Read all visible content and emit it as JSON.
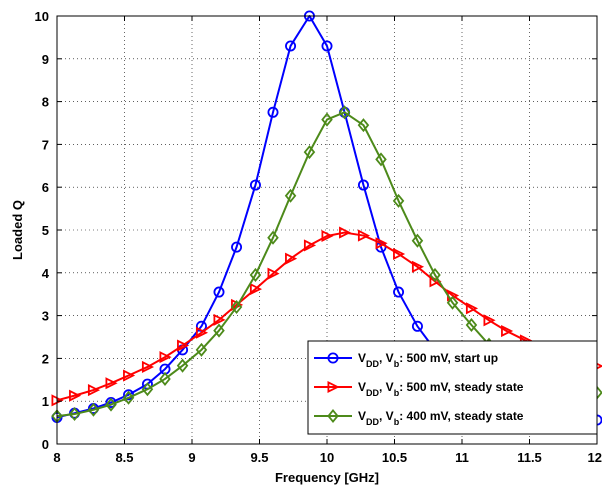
{
  "chart_data": {
    "type": "line",
    "xlabel": "Frequency [GHz]",
    "ylabel": "Loaded Q",
    "xlim": [
      8,
      12
    ],
    "ylim": [
      0,
      10
    ],
    "xticks": [
      8,
      8.5,
      9,
      9.5,
      10,
      10.5,
      11,
      11.5,
      12
    ],
    "xtick_labels": [
      "8",
      "8.5",
      "9",
      "9.5",
      "10",
      "10.5",
      "11",
      "11.5",
      "12"
    ],
    "yticks": [
      0,
      1,
      2,
      3,
      4,
      5,
      6,
      7,
      8,
      9,
      10
    ],
    "ytick_labels": [
      "0",
      "1",
      "2",
      "3",
      "4",
      "5",
      "6",
      "7",
      "8",
      "9",
      "10"
    ],
    "grid": true,
    "legend_position": "bottom-right",
    "series": [
      {
        "name_parts": [
          {
            "t": "V",
            "sub": false
          },
          {
            "t": "DD",
            "sub": true
          },
          {
            "t": ", V",
            "sub": false
          },
          {
            "t": "b",
            "sub": true
          },
          {
            "t": ": 500 mV, start up",
            "sub": false
          }
        ],
        "color": "#0000ff",
        "marker": "circle",
        "x": [
          8.0,
          8.13,
          8.27,
          8.4,
          8.53,
          8.67,
          8.8,
          8.93,
          9.07,
          9.2,
          9.33,
          9.47,
          9.6,
          9.73,
          9.87,
          10.0,
          10.13,
          10.27,
          10.4,
          10.53,
          10.67,
          10.8,
          10.93,
          11.07,
          11.2,
          11.33,
          11.47,
          11.6,
          11.73,
          11.87,
          12.0
        ],
        "y": [
          0.62,
          0.72,
          0.83,
          0.97,
          1.15,
          1.4,
          1.75,
          2.2,
          2.75,
          3.55,
          4.6,
          6.05,
          7.75,
          9.3,
          10.0,
          9.3,
          7.75,
          6.05,
          4.6,
          3.55,
          2.75,
          2.2,
          1.8,
          1.48,
          1.22,
          1.03,
          0.9,
          0.8,
          0.72,
          0.64,
          0.56
        ]
      },
      {
        "name_parts": [
          {
            "t": "V",
            "sub": false
          },
          {
            "t": "DD",
            "sub": true
          },
          {
            "t": ", V",
            "sub": false
          },
          {
            "t": "b",
            "sub": true
          },
          {
            "t": ": 500 mV, steady state",
            "sub": false
          }
        ],
        "color": "#ff0000",
        "marker": "triangle-right",
        "x": [
          8.0,
          8.13,
          8.27,
          8.4,
          8.53,
          8.67,
          8.8,
          8.93,
          9.07,
          9.2,
          9.33,
          9.47,
          9.6,
          9.73,
          9.87,
          10.0,
          10.13,
          10.27,
          10.4,
          10.53,
          10.67,
          10.8,
          10.93,
          11.07,
          11.2,
          11.33,
          11.47,
          11.6,
          11.73,
          11.87,
          12.0
        ],
        "y": [
          1.02,
          1.13,
          1.26,
          1.42,
          1.6,
          1.8,
          2.03,
          2.3,
          2.6,
          2.9,
          3.25,
          3.62,
          3.98,
          4.33,
          4.64,
          4.86,
          4.94,
          4.87,
          4.69,
          4.44,
          4.14,
          3.8,
          3.47,
          3.17,
          2.89,
          2.64,
          2.42,
          2.23,
          2.08,
          1.95,
          1.82
        ]
      },
      {
        "name_parts": [
          {
            "t": "V",
            "sub": false
          },
          {
            "t": "DD",
            "sub": true
          },
          {
            "t": ", V",
            "sub": false
          },
          {
            "t": "b",
            "sub": true
          },
          {
            "t": ": 400 mV, steady state",
            "sub": false
          }
        ],
        "color": "#4d8a1a",
        "marker": "diamond",
        "x": [
          8.0,
          8.13,
          8.27,
          8.4,
          8.53,
          8.67,
          8.8,
          8.93,
          9.07,
          9.2,
          9.33,
          9.47,
          9.6,
          9.73,
          9.87,
          10.0,
          10.13,
          10.27,
          10.4,
          10.53,
          10.67,
          10.8,
          10.93,
          11.07,
          11.2,
          11.33,
          11.47,
          11.6,
          11.73,
          11.87,
          12.0
        ],
        "y": [
          0.65,
          0.7,
          0.8,
          0.92,
          1.08,
          1.28,
          1.52,
          1.83,
          2.2,
          2.65,
          3.2,
          3.95,
          4.82,
          5.8,
          6.82,
          7.58,
          7.75,
          7.45,
          6.65,
          5.68,
          4.75,
          3.95,
          3.3,
          2.78,
          2.32,
          1.98,
          1.72,
          1.55,
          1.42,
          1.32,
          1.2
        ]
      }
    ]
  }
}
